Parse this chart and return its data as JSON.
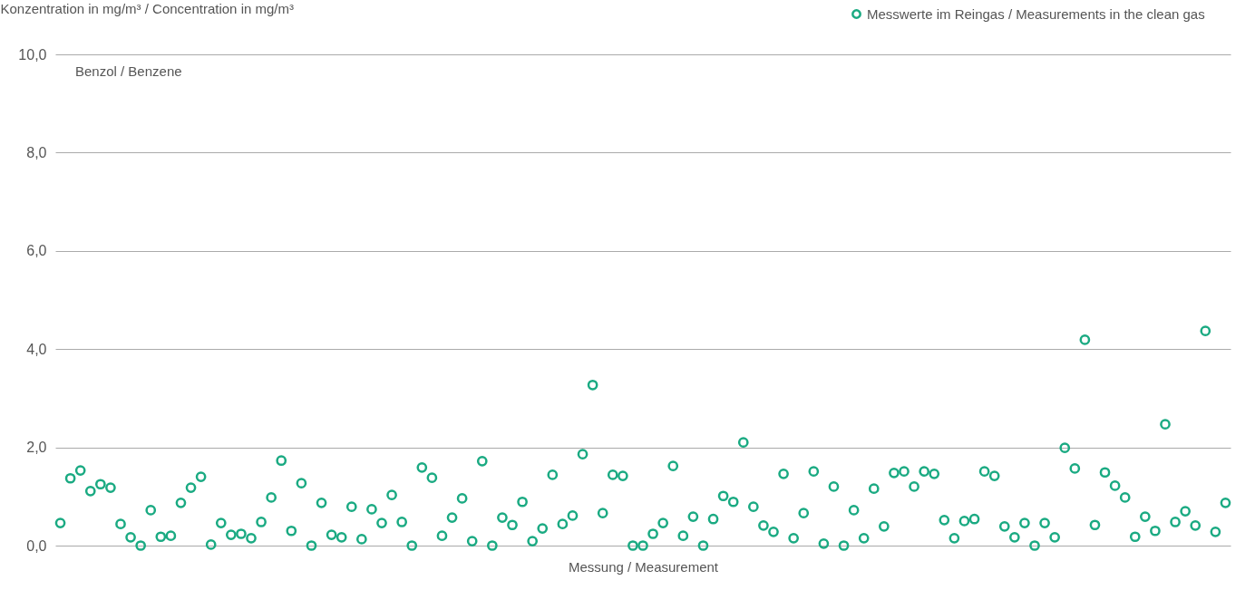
{
  "chart_data": {
    "type": "scatter",
    "ylabel": "Konzentration in mg/m³ / Concentration in mg/m³",
    "xlabel": "Messung / Measurement",
    "annotations": [
      "Benzol / Benzene"
    ],
    "categories": [
      null,
      null,
      null,
      null,
      null,
      null,
      null,
      null,
      null,
      null,
      null,
      null,
      null,
      null,
      null,
      null,
      null,
      null,
      null,
      null,
      null,
      null,
      null,
      null,
      null,
      null,
      null,
      null,
      null,
      null,
      null,
      null,
      null,
      null,
      null,
      null,
      null,
      null,
      null,
      null,
      null,
      null,
      null,
      null,
      null,
      null,
      null,
      null,
      null,
      null,
      null,
      null,
      null,
      null,
      null,
      null,
      null,
      null,
      null,
      null,
      null,
      null,
      null,
      null,
      null,
      null,
      null,
      null,
      null,
      null,
      null,
      null,
      null,
      null,
      null,
      null,
      null,
      null,
      null,
      null,
      null,
      null,
      null,
      null,
      null,
      null,
      null,
      null,
      null,
      null,
      null,
      null,
      null,
      null,
      null,
      null,
      null,
      null,
      null,
      null,
      null,
      null,
      null,
      null,
      null,
      null,
      null,
      null,
      null,
      null,
      null,
      null,
      null,
      null,
      null,
      null,
      null
    ],
    "series": [
      {
        "name": "Messwerte im Reingas / Measurements in the clean gas",
        "color": "#1aaa82",
        "values": [
          0.46,
          1.37,
          1.53,
          1.11,
          1.25,
          1.18,
          0.44,
          0.17,
          0.0,
          0.72,
          0.18,
          0.2,
          0.87,
          1.18,
          1.4,
          0.02,
          0.46,
          0.22,
          0.24,
          0.15,
          0.48,
          0.98,
          1.73,
          0.3,
          1.27,
          0.0,
          0.87,
          0.22,
          0.17,
          0.79,
          0.13,
          0.74,
          0.46,
          1.03,
          0.48,
          0.0,
          1.59,
          1.38,
          0.2,
          0.57,
          0.96,
          0.09,
          1.72,
          0.0,
          0.57,
          0.42,
          0.89,
          0.09,
          0.35,
          1.44,
          0.44,
          0.61,
          1.86,
          3.27,
          0.66,
          1.44,
          1.42,
          0.0,
          0.0,
          0.24,
          0.46,
          1.62,
          0.2,
          0.59,
          0.0,
          0.54,
          1.01,
          0.89,
          2.1,
          0.79,
          0.41,
          0.28,
          1.46,
          0.15,
          0.66,
          1.51,
          0.04,
          1.2,
          0.0,
          0.72,
          0.15,
          1.16,
          0.39,
          1.48,
          1.51,
          1.2,
          1.51,
          1.46,
          0.52,
          0.15,
          0.5,
          0.54,
          1.51,
          1.42,
          0.39,
          0.17,
          0.46,
          0.0,
          0.46,
          0.17,
          1.99,
          1.57,
          4.19,
          0.42,
          1.49,
          1.22,
          0.98,
          0.18,
          0.59,
          0.3,
          2.47,
          0.48,
          0.7,
          0.41,
          4.37,
          0.28,
          0.87
        ]
      }
    ],
    "ylim": [
      0,
      10
    ],
    "yticks": [
      {
        "value": 0,
        "label": "0,0"
      },
      {
        "value": 2,
        "label": "2,0"
      },
      {
        "value": 4,
        "label": "4,0"
      },
      {
        "value": 6,
        "label": "6,0"
      },
      {
        "value": 8,
        "label": "8,0"
      },
      {
        "value": 10,
        "label": "10,0"
      }
    ],
    "grid": "y",
    "legend": "top right",
    "marker": "circle"
  }
}
